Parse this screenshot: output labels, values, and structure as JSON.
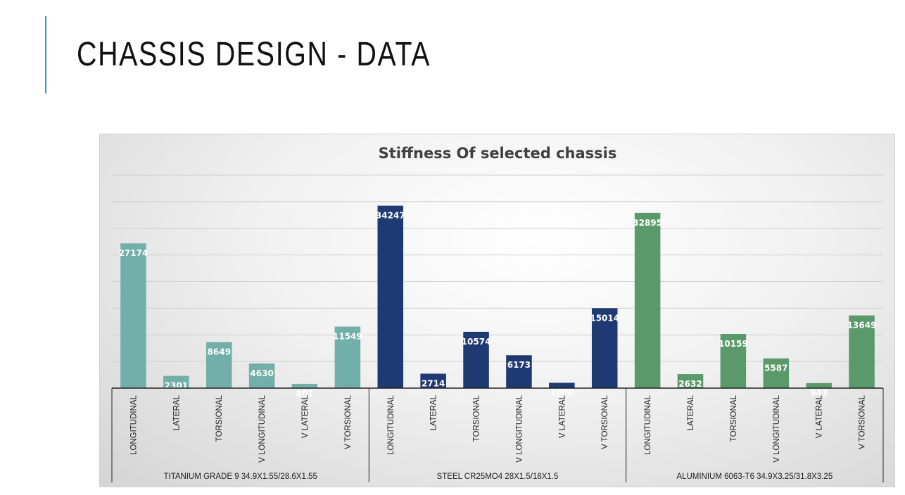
{
  "slide": {
    "title": "CHASSIS DESIGN - DATA",
    "accent_color": "#2E9BD6"
  },
  "chart_data": {
    "type": "bar",
    "title": "Stiffness Of selected chassis",
    "xlabel": "",
    "ylabel": "",
    "ylim": [
      0,
      40000
    ],
    "grid": true,
    "groups": [
      {
        "name": "TITANIUM GRADE 9 34.9X1.55/28.6X1.55",
        "color": "#72AFA9",
        "categories": [
          "LONGITUDINAL",
          "LATERAL",
          "TORSIONAL",
          "V LONGITUDINAL",
          "V LATERAL",
          "V TORSIONAL"
        ],
        "values": [
          27174,
          2301,
          8649,
          4630,
          801,
          11549
        ]
      },
      {
        "name": "STEEL CR25MO4 28X1.5/18X1.5",
        "color": "#1F3A73",
        "categories": [
          "LONGITUDINAL",
          "LATERAL",
          "TORSIONAL",
          "V LONGITUDINAL",
          "V LATERAL",
          "V TORSIONAL"
        ],
        "values": [
          34247,
          2714,
          10574,
          6173,
          1000,
          15014
        ]
      },
      {
        "name": "ALUMINIUM 6063-T6 34.9X3.25/31.8X3.25",
        "color": "#5A9A6A",
        "categories": [
          "LONGITUDINAL",
          "LATERAL",
          "TORSIONAL",
          "V LONGITUDINAL",
          "V LATERAL",
          "V TORSIONAL"
        ],
        "values": [
          32895,
          2632,
          10159,
          5587,
          943,
          13649
        ]
      }
    ]
  }
}
